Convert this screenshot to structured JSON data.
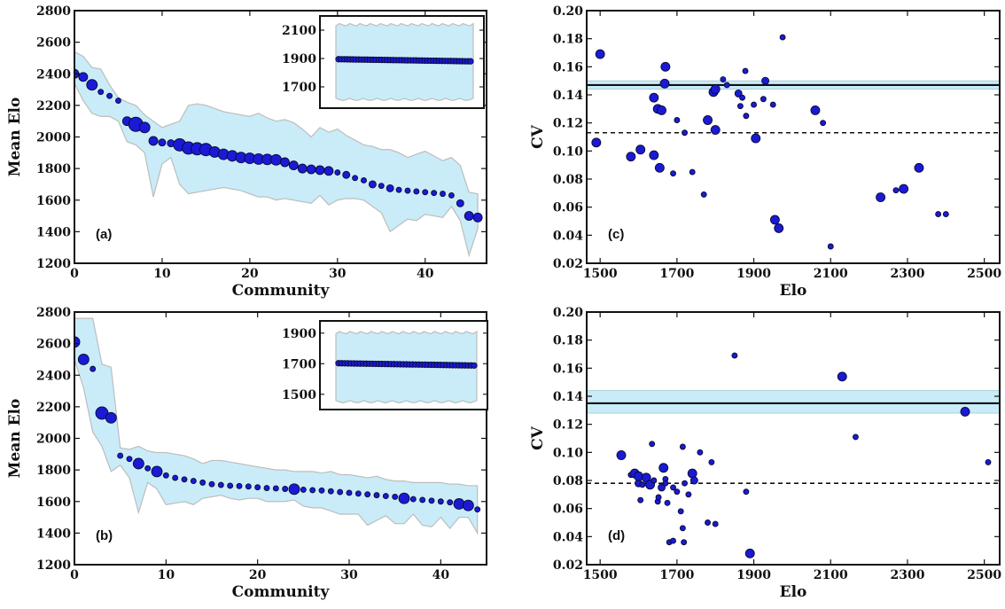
{
  "chart_data": [
    {
      "panel": "(a)",
      "type": "scatter",
      "xlabel": "Community",
      "ylabel": "Mean Elo",
      "xlim": [
        0,
        47
      ],
      "ylim": [
        1200,
        2800
      ],
      "xticks": [
        0,
        10,
        20,
        30,
        40
      ],
      "yticks": [
        1200,
        1400,
        1600,
        1800,
        2000,
        2200,
        2400,
        2600,
        2800
      ],
      "x": [
        0,
        1,
        2,
        3,
        4,
        5,
        6,
        7,
        8,
        9,
        10,
        11,
        12,
        13,
        14,
        15,
        16,
        17,
        18,
        19,
        20,
        21,
        22,
        23,
        24,
        25,
        26,
        27,
        28,
        29,
        30,
        31,
        32,
        33,
        34,
        35,
        36,
        37,
        38,
        39,
        40,
        41,
        42,
        43,
        44,
        45,
        46
      ],
      "y": [
        2400,
        2380,
        2330,
        2285,
        2260,
        2230,
        2100,
        2080,
        2060,
        1975,
        1965,
        1960,
        1950,
        1930,
        1925,
        1920,
        1905,
        1890,
        1880,
        1870,
        1865,
        1860,
        1858,
        1855,
        1840,
        1820,
        1800,
        1795,
        1790,
        1785,
        1775,
        1760,
        1740,
        1725,
        1700,
        1690,
        1675,
        1665,
        1660,
        1655,
        1650,
        1645,
        1640,
        1630,
        1580,
        1500,
        1490
      ],
      "band_upper": [
        2540,
        2510,
        2440,
        2430,
        2330,
        2250,
        2220,
        2200,
        2140,
        2100,
        2060,
        2080,
        2100,
        2200,
        2210,
        2200,
        2180,
        2160,
        2150,
        2140,
        2130,
        2150,
        2120,
        2100,
        2110,
        2090,
        2050,
        2000,
        2060,
        2030,
        2050,
        2010,
        1980,
        1950,
        1940,
        1920,
        1920,
        1900,
        1870,
        1890,
        1910,
        1880,
        1850,
        1870,
        1820,
        1650,
        1640
      ],
      "band_lower": [
        2340,
        2230,
        2150,
        2130,
        2130,
        2100,
        1970,
        1950,
        1900,
        1620,
        1830,
        1870,
        1700,
        1640,
        1650,
        1660,
        1670,
        1680,
        1670,
        1660,
        1640,
        1620,
        1620,
        1600,
        1610,
        1600,
        1590,
        1580,
        1630,
        1570,
        1600,
        1610,
        1610,
        1600,
        1560,
        1520,
        1400,
        1440,
        1480,
        1470,
        1510,
        1500,
        1490,
        1560,
        1470,
        1250,
        1420
      ],
      "sizes": [
        5,
        5,
        6,
        3,
        3,
        3,
        5,
        8,
        6,
        5,
        4,
        4,
        7,
        7,
        7,
        7,
        6,
        6,
        6,
        6,
        6,
        6,
        6,
        6,
        5,
        5,
        5,
        5,
        5,
        5,
        3,
        4,
        3,
        3,
        4,
        3,
        4,
        3,
        3,
        3,
        3,
        3,
        3,
        3,
        4,
        5,
        5
      ],
      "inset": {
        "ylim": [
          1550,
          2200
        ],
        "yticks": [
          1700,
          1900,
          2100
        ],
        "mean_start": 1895,
        "mean_end": 1880,
        "band_upper": 2140,
        "band_lower": 1610,
        "n": 47
      }
    },
    {
      "panel": "(b)",
      "type": "scatter",
      "xlabel": "Community",
      "ylabel": "Mean Elo",
      "xlim": [
        0,
        45
      ],
      "ylim": [
        1200,
        2800
      ],
      "xticks": [
        0,
        10,
        20,
        30,
        40
      ],
      "yticks": [
        1200,
        1400,
        1600,
        1800,
        2000,
        2200,
        2400,
        2600,
        2800
      ],
      "x": [
        0,
        1,
        2,
        3,
        4,
        5,
        6,
        7,
        8,
        9,
        10,
        11,
        12,
        13,
        14,
        15,
        16,
        17,
        18,
        19,
        20,
        21,
        22,
        23,
        24,
        25,
        26,
        27,
        28,
        29,
        30,
        31,
        32,
        33,
        34,
        35,
        36,
        37,
        38,
        39,
        40,
        41,
        42,
        43,
        44
      ],
      "y": [
        2610,
        2500,
        2440,
        2160,
        2130,
        1890,
        1870,
        1840,
        1810,
        1790,
        1765,
        1750,
        1740,
        1730,
        1720,
        1710,
        1705,
        1700,
        1698,
        1695,
        1690,
        1685,
        1683,
        1680,
        1678,
        1675,
        1672,
        1670,
        1665,
        1660,
        1655,
        1650,
        1645,
        1640,
        1635,
        1630,
        1620,
        1615,
        1610,
        1605,
        1600,
        1595,
        1585,
        1575,
        1550
      ],
      "band_upper": [
        2760,
        2760,
        2760,
        2470,
        2450,
        1940,
        1930,
        1950,
        1920,
        1910,
        1910,
        1900,
        1890,
        1870,
        1840,
        1860,
        1860,
        1850,
        1840,
        1830,
        1820,
        1810,
        1800,
        1800,
        1790,
        1790,
        1790,
        1780,
        1790,
        1770,
        1770,
        1760,
        1750,
        1760,
        1740,
        1730,
        1730,
        1720,
        1720,
        1720,
        1720,
        1710,
        1710,
        1700,
        1700
      ],
      "band_lower": [
        2500,
        2320,
        2040,
        1950,
        1790,
        1830,
        1750,
        1530,
        1720,
        1680,
        1580,
        1590,
        1600,
        1580,
        1620,
        1630,
        1640,
        1620,
        1610,
        1620,
        1620,
        1600,
        1600,
        1600,
        1610,
        1570,
        1560,
        1560,
        1540,
        1520,
        1520,
        1520,
        1450,
        1480,
        1510,
        1460,
        1460,
        1520,
        1450,
        1440,
        1500,
        1430,
        1500,
        1500,
        1400
      ],
      "sizes": [
        6,
        6,
        3,
        7,
        6,
        3,
        3,
        6,
        3,
        6,
        3,
        3,
        3,
        3,
        3,
        3,
        3,
        3,
        3,
        3,
        3,
        3,
        3,
        3,
        6,
        3,
        3,
        3,
        3,
        3,
        3,
        3,
        3,
        3,
        3,
        3,
        6,
        3,
        3,
        3,
        3,
        3,
        6,
        6,
        3
      ],
      "inset": {
        "ylim": [
          1400,
          1980
        ],
        "yticks": [
          1500,
          1700,
          1900
        ],
        "mean_start": 1703,
        "mean_end": 1688,
        "band_upper": 1905,
        "band_lower": 1450,
        "n": 45
      }
    },
    {
      "panel": "(c)",
      "type": "scatter",
      "xlabel": "Elo",
      "ylabel": "CV",
      "xlim": [
        1465,
        2540
      ],
      "ylim": [
        0.02,
        0.2
      ],
      "xticks": [
        1500,
        1700,
        1900,
        2100,
        2300,
        2500
      ],
      "yticks": [
        0.02,
        0.04,
        0.06,
        0.08,
        0.1,
        0.12,
        0.14,
        0.16,
        0.18,
        0.2
      ],
      "hline_solid": 0.147,
      "hband": [
        0.144,
        0.15
      ],
      "hline_dashed": 0.113,
      "points": [
        [
          1500,
          0.169,
          5
        ],
        [
          1490,
          0.106,
          5
        ],
        [
          1580,
          0.096,
          5
        ],
        [
          1605,
          0.101,
          5
        ],
        [
          1640,
          0.138,
          5
        ],
        [
          1650,
          0.13,
          5
        ],
        [
          1660,
          0.129,
          5
        ],
        [
          1668,
          0.148,
          5
        ],
        [
          1670,
          0.16,
          5
        ],
        [
          1640,
          0.097,
          5
        ],
        [
          1655,
          0.088,
          5
        ],
        [
          1690,
          0.084,
          3
        ],
        [
          1700,
          0.122,
          3
        ],
        [
          1720,
          0.113,
          3
        ],
        [
          1740,
          0.085,
          3
        ],
        [
          1770,
          0.069,
          3
        ],
        [
          1780,
          0.122,
          5
        ],
        [
          1795,
          0.142,
          5
        ],
        [
          1800,
          0.144,
          5
        ],
        [
          1800,
          0.115,
          5
        ],
        [
          1820,
          0.151,
          3
        ],
        [
          1830,
          0.147,
          3
        ],
        [
          1860,
          0.141,
          4
        ],
        [
          1865,
          0.132,
          3
        ],
        [
          1870,
          0.138,
          3
        ],
        [
          1878,
          0.157,
          3
        ],
        [
          1880,
          0.125,
          3
        ],
        [
          1900,
          0.133,
          3
        ],
        [
          1905,
          0.109,
          5
        ],
        [
          1925,
          0.137,
          3
        ],
        [
          1930,
          0.15,
          4
        ],
        [
          1950,
          0.133,
          3
        ],
        [
          1955,
          0.051,
          5
        ],
        [
          1965,
          0.045,
          5
        ],
        [
          1975,
          0.181,
          3
        ],
        [
          2060,
          0.129,
          5
        ],
        [
          2080,
          0.12,
          3
        ],
        [
          2100,
          0.032,
          3
        ],
        [
          2230,
          0.067,
          5
        ],
        [
          2270,
          0.072,
          3
        ],
        [
          2290,
          0.073,
          5
        ],
        [
          2330,
          0.088,
          5
        ],
        [
          2380,
          0.055,
          3
        ],
        [
          2400,
          0.055,
          3
        ]
      ]
    },
    {
      "panel": "(d)",
      "type": "scatter",
      "xlabel": "Elo",
      "ylabel": "CV",
      "xlim": [
        1465,
        2540
      ],
      "ylim": [
        0.02,
        0.2
      ],
      "xticks": [
        1500,
        1700,
        1900,
        2100,
        2300,
        2500
      ],
      "yticks": [
        0.02,
        0.04,
        0.06,
        0.08,
        0.1,
        0.12,
        0.14,
        0.16,
        0.18,
        0.2
      ],
      "hline_solid": 0.135,
      "hband": [
        0.128,
        0.144
      ],
      "hline_dashed": 0.078,
      "points": [
        [
          1555,
          0.098,
          5
        ],
        [
          1580,
          0.084,
          3
        ],
        [
          1590,
          0.085,
          5
        ],
        [
          1600,
          0.078,
          4
        ],
        [
          1600,
          0.083,
          5
        ],
        [
          1605,
          0.066,
          3
        ],
        [
          1610,
          0.077,
          3
        ],
        [
          1620,
          0.082,
          5
        ],
        [
          1630,
          0.077,
          5
        ],
        [
          1635,
          0.106,
          3
        ],
        [
          1640,
          0.08,
          3
        ],
        [
          1650,
          0.065,
          3
        ],
        [
          1652,
          0.068,
          3
        ],
        [
          1660,
          0.075,
          4
        ],
        [
          1665,
          0.089,
          5
        ],
        [
          1670,
          0.081,
          3
        ],
        [
          1670,
          0.078,
          3
        ],
        [
          1675,
          0.064,
          3
        ],
        [
          1680,
          0.036,
          3
        ],
        [
          1690,
          0.075,
          3
        ],
        [
          1690,
          0.037,
          3
        ],
        [
          1700,
          0.072,
          3
        ],
        [
          1710,
          0.058,
          3
        ],
        [
          1715,
          0.104,
          3
        ],
        [
          1715,
          0.046,
          3
        ],
        [
          1718,
          0.036,
          3
        ],
        [
          1720,
          0.078,
          3
        ],
        [
          1730,
          0.07,
          3
        ],
        [
          1740,
          0.085,
          5
        ],
        [
          1745,
          0.08,
          4
        ],
        [
          1760,
          0.1,
          3
        ],
        [
          1780,
          0.05,
          3
        ],
        [
          1790,
          0.093,
          3
        ],
        [
          1800,
          0.049,
          3
        ],
        [
          1850,
          0.169,
          3
        ],
        [
          1880,
          0.072,
          3
        ],
        [
          1890,
          0.028,
          5
        ],
        [
          2130,
          0.154,
          5
        ],
        [
          2165,
          0.111,
          3
        ],
        [
          2450,
          0.129,
          5
        ],
        [
          2510,
          0.093,
          3
        ]
      ]
    }
  ]
}
